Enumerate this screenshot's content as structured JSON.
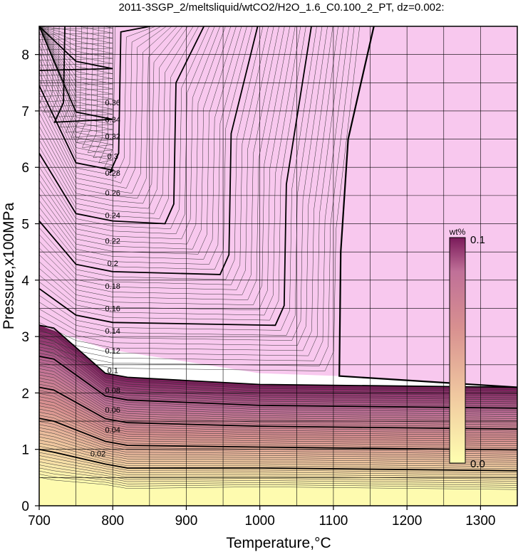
{
  "chart_data": {
    "type": "contour",
    "title": "2011-3SGP_2/meltsliquid/wtCO2/H2O_1.6_C0.100_2_PT, dz=0.002:",
    "xlabel": "Temperature,°C",
    "ylabel": "Pressure,x100MPa",
    "xlim": [
      700,
      1350
    ],
    "ylim": [
      0,
      8.5
    ],
    "x_ticks": [
      "700",
      "800",
      "900",
      "1000",
      "1100",
      "1200",
      "1300"
    ],
    "y_ticks": [
      "0",
      "1",
      "2",
      "3",
      "4",
      "5",
      "6",
      "7",
      "8"
    ],
    "grid": true,
    "contour_interval": 0.002,
    "colorbar": {
      "unit": "wt%",
      "min_label": "0.0",
      "max_label": "0.1",
      "min": 0.0,
      "max": 0.1,
      "colors": [
        "#ffffb0",
        "#f0c8a0",
        "#d89090",
        "#c07098",
        "#7a1a5a"
      ],
      "placement": "right-inside"
    },
    "saturated_region_color": "#f8c8ee",
    "contour_labels": [
      {
        "text": "0.02",
        "T": 780,
        "P": 0.93
      },
      {
        "text": "0.04",
        "T": 800,
        "P": 1.35
      },
      {
        "text": "0.06",
        "T": 800,
        "P": 1.7
      },
      {
        "text": "0.08",
        "T": 800,
        "P": 2.05
      },
      {
        "text": "0.1",
        "T": 800,
        "P": 2.4
      },
      {
        "text": "0.12",
        "T": 800,
        "P": 2.75
      },
      {
        "text": "0.14",
        "T": 800,
        "P": 3.1
      },
      {
        "text": "0.16",
        "T": 800,
        "P": 3.5
      },
      {
        "text": "0.18",
        "T": 800,
        "P": 3.9
      },
      {
        "text": "0.2",
        "T": 800,
        "P": 4.3
      },
      {
        "text": "0.22",
        "T": 800,
        "P": 4.7
      },
      {
        "text": "0.24",
        "T": 800,
        "P": 5.15
      },
      {
        "text": "0.26",
        "T": 800,
        "P": 5.55
      },
      {
        "text": "0.28",
        "T": 800,
        "P": 5.9
      },
      {
        "text": "0.3",
        "T": 800,
        "P": 6.2
      },
      {
        "text": "0.32",
        "T": 800,
        "P": 6.55
      },
      {
        "text": "0.34",
        "T": 800,
        "P": 6.85
      },
      {
        "text": "0.36",
        "T": 800,
        "P": 7.15
      }
    ],
    "saturation_boundary": [
      {
        "T": 1155,
        "P": 8.5
      },
      {
        "T": 1120,
        "P": 6.5
      },
      {
        "T": 1110,
        "P": 4.5
      },
      {
        "T": 1108,
        "P": 2.3
      },
      {
        "T": 1350,
        "P": 2.1
      }
    ]
  }
}
